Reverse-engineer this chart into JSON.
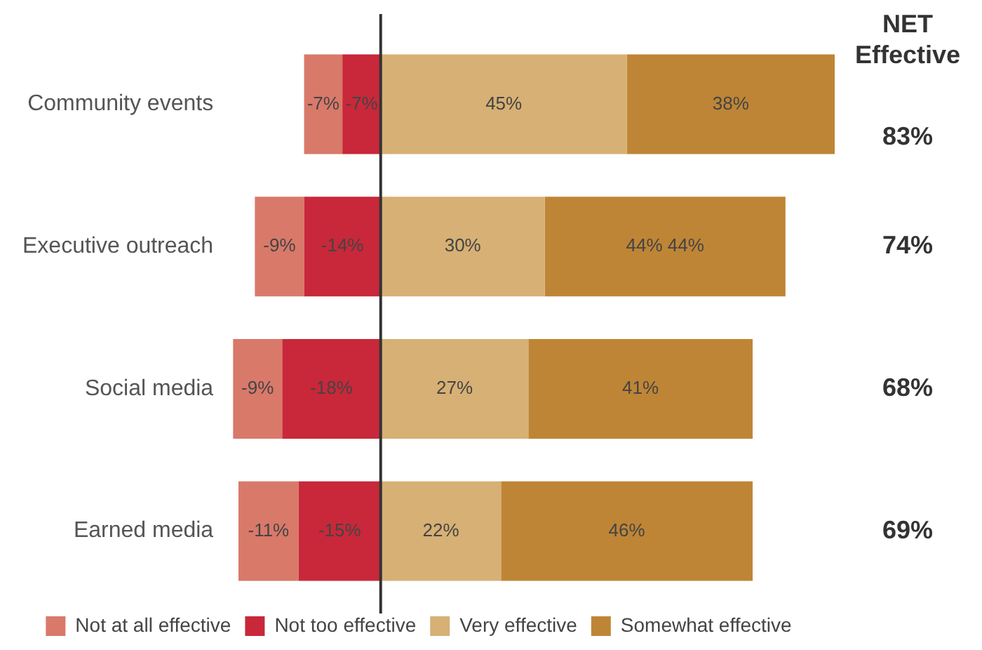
{
  "chart_data": {
    "type": "bar",
    "orientation": "horizontal",
    "stacked": true,
    "categories": [
      "Community events",
      "Executive outreach",
      "Social media",
      "Earned media"
    ],
    "series": [
      {
        "name": "Not too effective",
        "color": "#c8283a",
        "values": [
          -7,
          -14,
          -18,
          -15
        ],
        "value_labels": [
          "-7%",
          "-14%",
          "-18%",
          "-15%"
        ]
      },
      {
        "name": "Not at all effective",
        "color": "#d9796a",
        "values": [
          -7,
          -9,
          -9,
          -11
        ],
        "value_labels": [
          "-7%",
          "-9%",
          "-9%",
          "-11%"
        ]
      },
      {
        "name": "Very effective",
        "color": "#d7b075",
        "values": [
          45,
          30,
          27,
          22
        ],
        "value_labels": [
          "45%",
          "30%",
          "27%",
          "22%"
        ]
      },
      {
        "name": "Somewhat effective",
        "color": "#bf8536",
        "values": [
          38,
          44,
          41,
          46
        ],
        "value_labels": [
          "38%",
          "44% 44%",
          "41%",
          "46%"
        ]
      }
    ],
    "ref_lines": [
      {
        "axis": "x",
        "value": 0,
        "color": "#333333"
      }
    ],
    "annotations": [
      "NET Effective",
      "83%",
      "74%",
      "68%",
      "69%"
    ],
    "legend": "bottom",
    "grid": false,
    "tick_labels": "y"
  }
}
